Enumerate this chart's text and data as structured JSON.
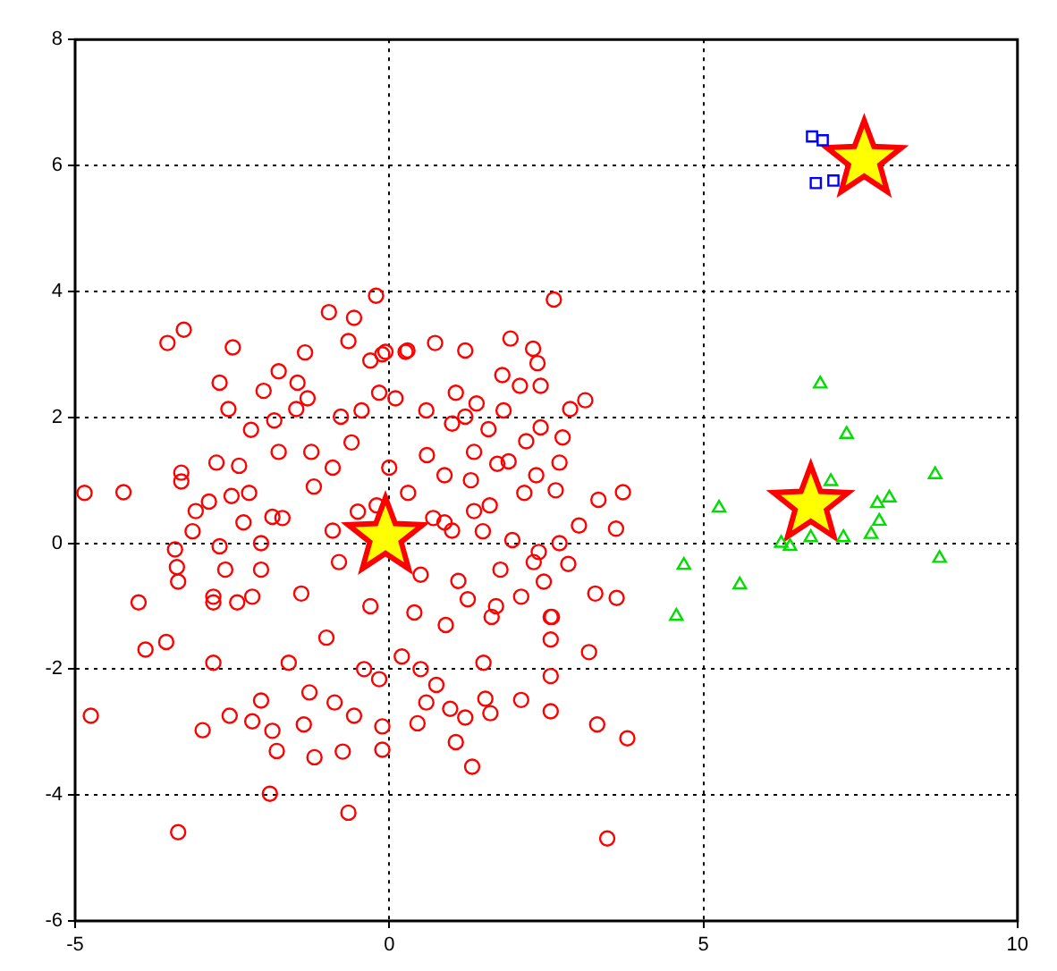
{
  "chart_data": {
    "type": "scatter",
    "xlim": [
      -5,
      10
    ],
    "ylim": [
      -6,
      8
    ],
    "xticks": [
      -5,
      0,
      5,
      10
    ],
    "yticks": [
      -6,
      -4,
      -2,
      0,
      2,
      4,
      6,
      8
    ],
    "grid": true,
    "line_style": "dotted",
    "series": [
      {
        "type": "scatter",
        "marker": "circle",
        "color": "#ff0000",
        "x": [
          -4.85,
          -4.23,
          -4.75,
          -3.36,
          -3.53,
          -3.27,
          -2.49,
          -0.21,
          2.62,
          3.33,
          3.72,
          3.02,
          3.61,
          3.28,
          3.62,
          3.79,
          3.31,
          3.47,
          -0.65,
          -1.9,
          3.18,
          2.57,
          2.57,
          1.32,
          1.06,
          -0.11,
          -0.11,
          -0.74,
          -1.19,
          -1.79,
          -1.86,
          -2.18,
          -2.54,
          -2.97,
          -3.88,
          -3.55,
          -2.8,
          -2.04,
          -1.36,
          -0.56,
          0.45,
          0.59,
          0.97,
          1.21,
          1.61,
          1.53,
          2.1,
          0.75,
          -0.87,
          -1.27,
          -0.16,
          2.57,
          2.59,
          -2.8,
          -3.99,
          -0.96,
          -0.56,
          -0.65,
          -1.34,
          -1.76,
          -2.7,
          -2.56,
          -2.0,
          -1.46,
          -1.83,
          -1.48,
          -2.75,
          -3.31,
          -3.31,
          -2.87,
          -3.08,
          -3.13,
          -3.41,
          -3.38,
          -2.51,
          -2.23,
          -2.39,
          -1.76,
          -1.24,
          -0.77,
          -0.44,
          -0.16,
          -0.3,
          -0.06,
          0.26,
          -1.86,
          -2.32,
          -2.04,
          -2.7,
          -2.61,
          -2.04,
          -3.36,
          -2.8,
          -2.42,
          -2.18,
          1.93,
          2.29,
          2.36,
          1.8,
          2.08,
          2.41,
          1.21,
          0.73,
          0.29,
          -0.11,
          3.12,
          2.88,
          2.76,
          2.41,
          2.71,
          2.65,
          2.34,
          1.06,
          1.39,
          1.82,
          1.21,
          1.58,
          2.18,
          0.59,
          1.72,
          1.35,
          2.15,
          1.96,
          2.38,
          2.85,
          2.46,
          2.71,
          2.1,
          2.57,
          1.63,
          1.25,
          1.77,
          1.35,
          0.88,
          0.88,
          1.49,
          -0.5,
          0.5,
          0.3,
          -0.8,
          1.0,
          -1.2,
          0.6,
          -0.3,
          0.9,
          -1.0,
          0.2,
          -0.6,
          1.3,
          -1.4,
          0.0,
          0.4,
          -0.9,
          1.1,
          -0.2,
          0.7,
          1.5,
          -1.6,
          -0.4,
          0.5,
          1.7,
          -1.7,
          1.9,
          0.1,
          -0.9,
          1.0,
          -1.3,
          1.6,
          -2.2,
          2.3
        ],
        "values": [
          0.8,
          0.81,
          -2.74,
          -4.59,
          3.18,
          3.39,
          3.11,
          3.93,
          3.87,
          0.69,
          0.81,
          0.28,
          0.23,
          -0.8,
          -0.87,
          -3.1,
          -2.88,
          -4.69,
          -4.28,
          -3.98,
          -1.73,
          -2.11,
          -2.67,
          -3.55,
          -3.16,
          -3.28,
          -2.91,
          -3.31,
          -3.4,
          -3.3,
          -2.98,
          -2.83,
          -2.74,
          -2.97,
          -1.69,
          -1.57,
          -1.9,
          -2.5,
          -2.88,
          -2.74,
          -2.86,
          -2.53,
          -2.63,
          -2.77,
          -2.7,
          -2.47,
          -2.49,
          -2.25,
          -2.53,
          -2.37,
          -2.16,
          -1.53,
          -1.17,
          -0.94,
          -0.94,
          3.67,
          3.58,
          3.21,
          3.03,
          2.73,
          2.55,
          2.13,
          2.42,
          2.55,
          1.95,
          2.13,
          1.28,
          1.12,
          0.98,
          0.66,
          0.51,
          0.19,
          -0.1,
          -0.38,
          0.75,
          0.8,
          1.23,
          1.45,
          1.45,
          2.01,
          2.11,
          2.39,
          2.9,
          3.04,
          3.04,
          0.42,
          0.33,
          0.0,
          -0.05,
          -0.42,
          -0.42,
          -0.61,
          -0.85,
          -0.94,
          -0.85,
          3.25,
          3.09,
          2.86,
          2.67,
          2.5,
          2.5,
          3.06,
          3.18,
          3.06,
          3.0,
          2.27,
          2.13,
          1.68,
          1.84,
          1.28,
          0.84,
          1.08,
          2.39,
          2.22,
          2.11,
          2.01,
          1.81,
          1.62,
          2.11,
          1.26,
          1.45,
          0.8,
          0.05,
          -0.14,
          -0.33,
          -0.61,
          0.0,
          -0.85,
          -1.17,
          -1.17,
          -0.89,
          -0.42,
          0.51,
          1.08,
          0.33,
          0.19,
          0.5,
          -0.5,
          0.8,
          -0.3,
          0.2,
          0.9,
          1.4,
          -1.0,
          -1.3,
          -1.5,
          -1.8,
          1.6,
          1.0,
          -0.8,
          1.2,
          -1.1,
          0.2,
          -0.6,
          0.6,
          0.4,
          -1.9,
          -1.9,
          -2.0,
          -2.0,
          -1.0,
          0.4,
          1.3,
          2.3,
          1.2,
          1.9,
          2.3,
          0.6,
          1.8,
          -0.3
        ]
      },
      {
        "type": "scatter",
        "marker": "square",
        "color": "#0000ff",
        "x": [
          6.73,
          6.9,
          6.79,
          7.07
        ],
        "values": [
          6.46,
          6.4,
          5.72,
          5.76
        ]
      },
      {
        "type": "scatter",
        "marker": "triangle",
        "color": "#00dd00",
        "x": [
          6.86,
          7.28,
          7.03,
          5.25,
          8.69,
          7.96,
          7.77,
          7.8,
          7.67,
          7.23,
          6.71,
          6.38,
          6.24,
          8.76,
          4.69,
          5.58,
          4.57
        ],
        "values": [
          2.53,
          1.73,
          0.98,
          0.56,
          1.09,
          0.72,
          0.63,
          0.35,
          0.14,
          0.09,
          0.09,
          -0.05,
          0.0,
          -0.24,
          -0.35,
          -0.66,
          -1.16
        ]
      },
      {
        "type": "scatter",
        "marker": "star",
        "color": "#ffff00",
        "x": [
          -0.06,
          7.56,
          6.71
        ],
        "values": [
          0.1,
          6.09,
          0.61
        ]
      }
    ]
  }
}
